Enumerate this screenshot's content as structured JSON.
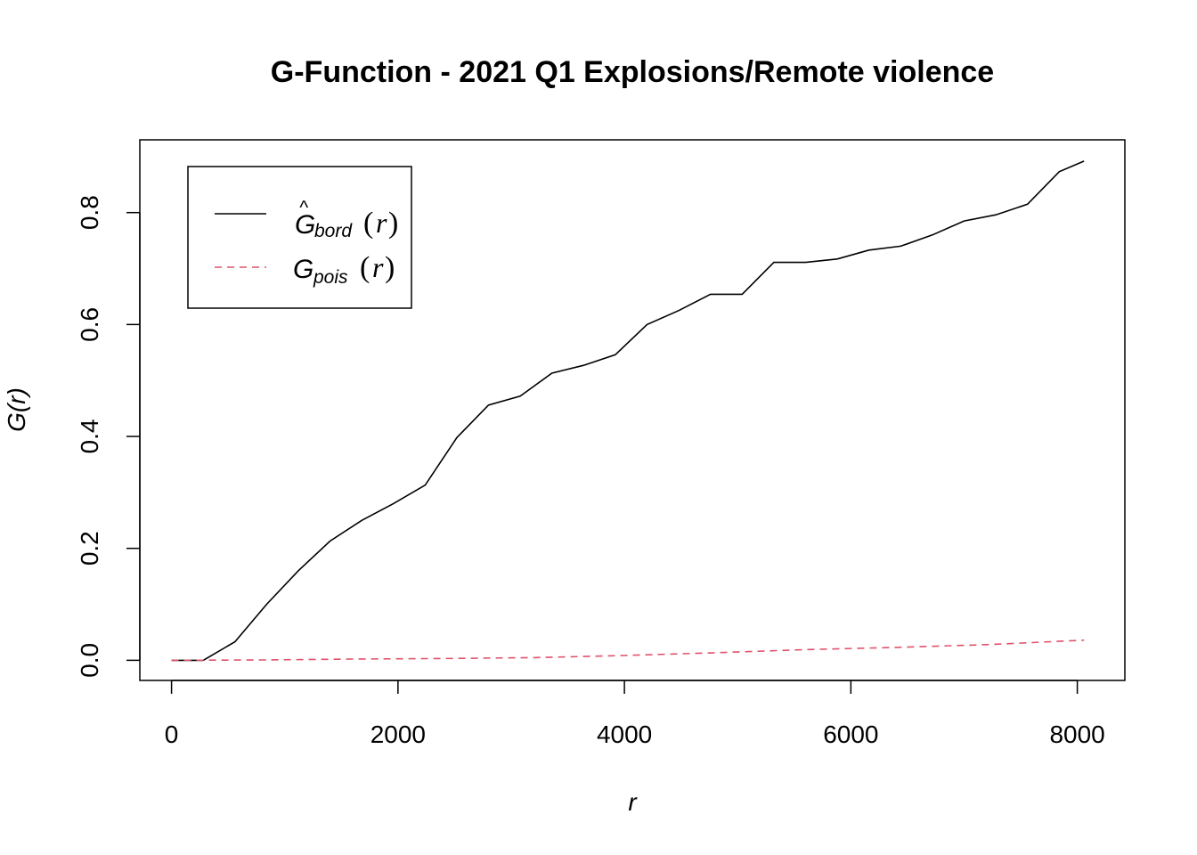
{
  "chart_data": {
    "type": "line",
    "title": "G-Function - 2021 Q1 Explosions/Remote violence",
    "xlabel": "r",
    "ylabel": "G(r)",
    "xlim": [
      -280,
      8420
    ],
    "ylim": [
      -0.036,
      0.93
    ],
    "xticks": [
      0,
      2000,
      4000,
      6000,
      8000
    ],
    "xtick_labels": [
      "0",
      "2000",
      "4000",
      "6000",
      "8000"
    ],
    "yticks": [
      0.0,
      0.2,
      0.4,
      0.6,
      0.8
    ],
    "ytick_labels": [
      "0.0",
      "0.2",
      "0.4",
      "0.6",
      "0.8"
    ],
    "grid": false,
    "legend_position": "top-left",
    "series": [
      {
        "label_main": "G",
        "label_hat": "^",
        "label_sub": "bord",
        "label_paren_open": "(",
        "label_arg": "r",
        "label_paren_close": ")",
        "color": "#000000",
        "dash": "solid",
        "x": [
          0,
          280,
          560,
          840,
          1120,
          1400,
          1680,
          1960,
          2240,
          2520,
          2800,
          3080,
          3360,
          3640,
          3920,
          4200,
          4480,
          4760,
          5040,
          5320,
          5600,
          5880,
          6160,
          6440,
          6720,
          7000,
          7280,
          7560,
          7840,
          8060
        ],
        "y": [
          0.0,
          0.0,
          0.033,
          0.1,
          0.16,
          0.213,
          0.25,
          0.28,
          0.313,
          0.398,
          0.456,
          0.472,
          0.513,
          0.527,
          0.546,
          0.6,
          0.625,
          0.654,
          0.654,
          0.711,
          0.711,
          0.717,
          0.733,
          0.74,
          0.76,
          0.785,
          0.796,
          0.815,
          0.873,
          0.892
        ]
      },
      {
        "label_main": "G",
        "label_hat": "",
        "label_sub": "pois",
        "label_paren_open": "(",
        "label_arg": "r",
        "label_paren_close": ")",
        "color": "#DF536B",
        "dash": "dashed",
        "x": [
          0,
          800,
          1600,
          2400,
          3200,
          4000,
          4800,
          5600,
          6400,
          7200,
          8060
        ],
        "y": [
          0.0,
          0.0006,
          0.0022,
          0.0032,
          0.0048,
          0.0085,
          0.0135,
          0.019,
          0.023,
          0.028,
          0.036
        ]
      }
    ]
  }
}
